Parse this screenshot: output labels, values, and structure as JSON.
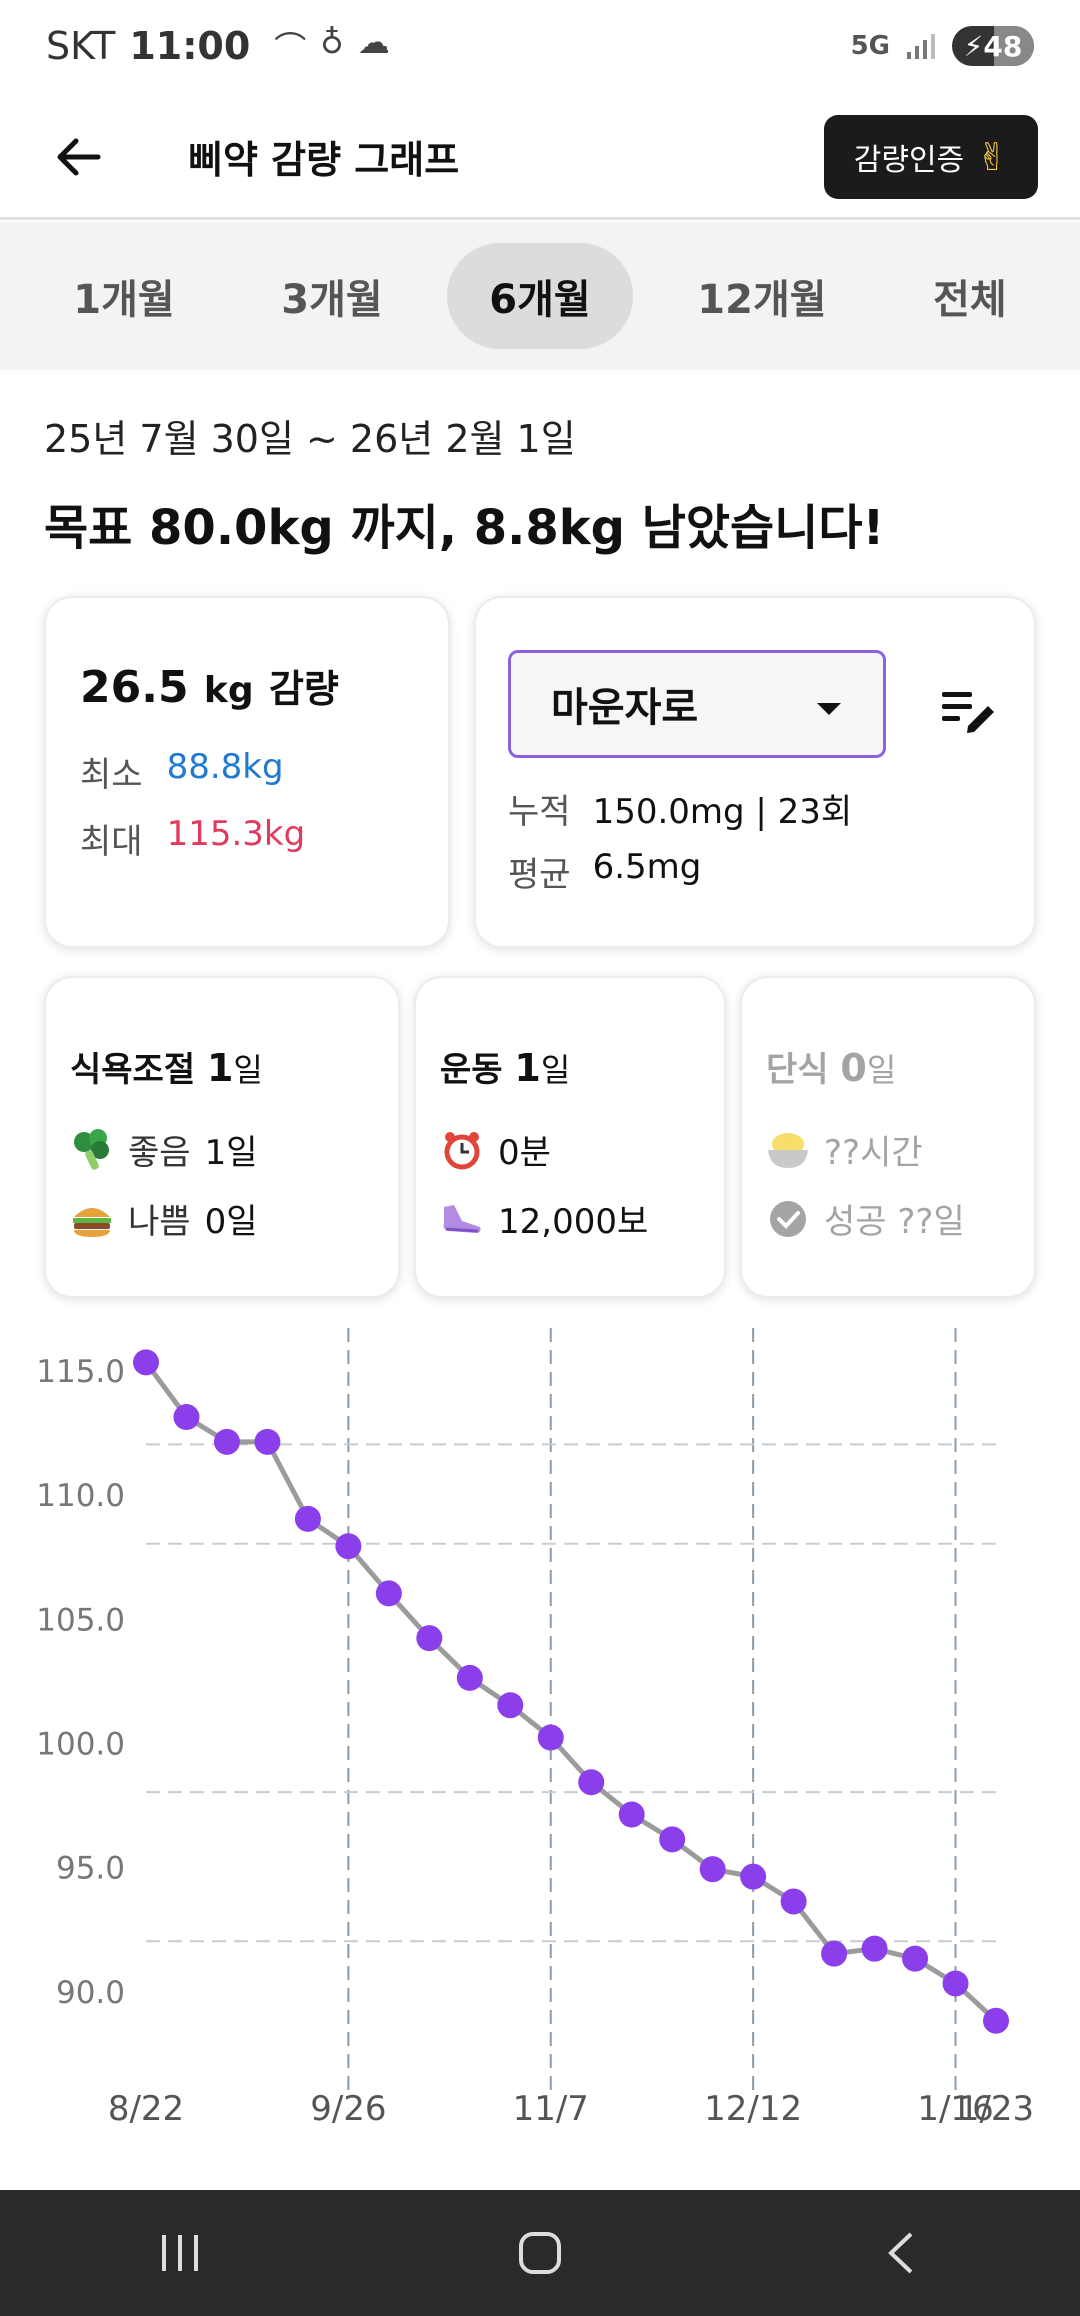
{
  "status": {
    "carrier": "SKT",
    "time": "11:00",
    "network": "5G",
    "battery": "48"
  },
  "header": {
    "title": "삐약 감량 그래프",
    "cert_label": "감량인증"
  },
  "tabs": [
    {
      "label": "1개월",
      "active": false
    },
    {
      "label": "3개월",
      "active": false
    },
    {
      "label": "6개월",
      "active": true
    },
    {
      "label": "12개월",
      "active": false
    },
    {
      "label": "전체",
      "active": false
    }
  ],
  "period": "25년 7월 30일 ~ 26년 2월 1일",
  "goal_text": "목표 80.0kg 까지, 8.8kg 남았습니다!",
  "weight_card": {
    "total": "26.5",
    "unit": "kg",
    "suffix": "감량",
    "min_label": "최소",
    "min_value": "88.8kg",
    "max_label": "최대",
    "max_value": "115.3kg"
  },
  "drug_card": {
    "selected": "마운자로",
    "cumulative_label": "누적",
    "cumulative_value": "150.0mg | 23회",
    "average_label": "평균",
    "average_value": "6.5mg"
  },
  "diet_card": {
    "title": "식욕조절",
    "count": "1",
    "unit": "일",
    "good_label": "좋음",
    "good_value": "1일",
    "bad_label": "나쁨",
    "bad_value": "0일"
  },
  "exercise_card": {
    "title": "운동",
    "count": "1",
    "unit": "일",
    "time_value": "0분",
    "steps_value": "12,000보"
  },
  "fast_card": {
    "title": "단식",
    "count": "0",
    "unit": "일",
    "hours_value": "??시간",
    "success_value": "성공 ??일"
  },
  "colors": {
    "accent": "#8a3fea",
    "line": "#9b9b9b",
    "min": "#2179d0",
    "max": "#e23a5e"
  },
  "chart_data": {
    "type": "line",
    "title": "",
    "xlabel": "",
    "ylabel": "",
    "ylim": [
      87.3,
      116.2
    ],
    "yticks": [
      90.0,
      95.0,
      100.0,
      105.0,
      110.0,
      115.0
    ],
    "ytick_labels": [
      "90.0",
      "95.0",
      "100.0",
      "105.0",
      "110.0",
      "115.0"
    ],
    "xtick_labels": [
      "8/22",
      "9/26",
      "11/7",
      "12/12",
      "1/16",
      "1/23"
    ],
    "grid": true,
    "series": [
      {
        "values": [
          115.3,
          113.1,
          112.1,
          112.1,
          109.0,
          107.9,
          106.0,
          104.2,
          102.6,
          101.5,
          100.2,
          98.4,
          97.1,
          96.1,
          94.9,
          94.6,
          93.6,
          91.5,
          91.7,
          91.3,
          90.3,
          88.8
        ]
      }
    ]
  }
}
